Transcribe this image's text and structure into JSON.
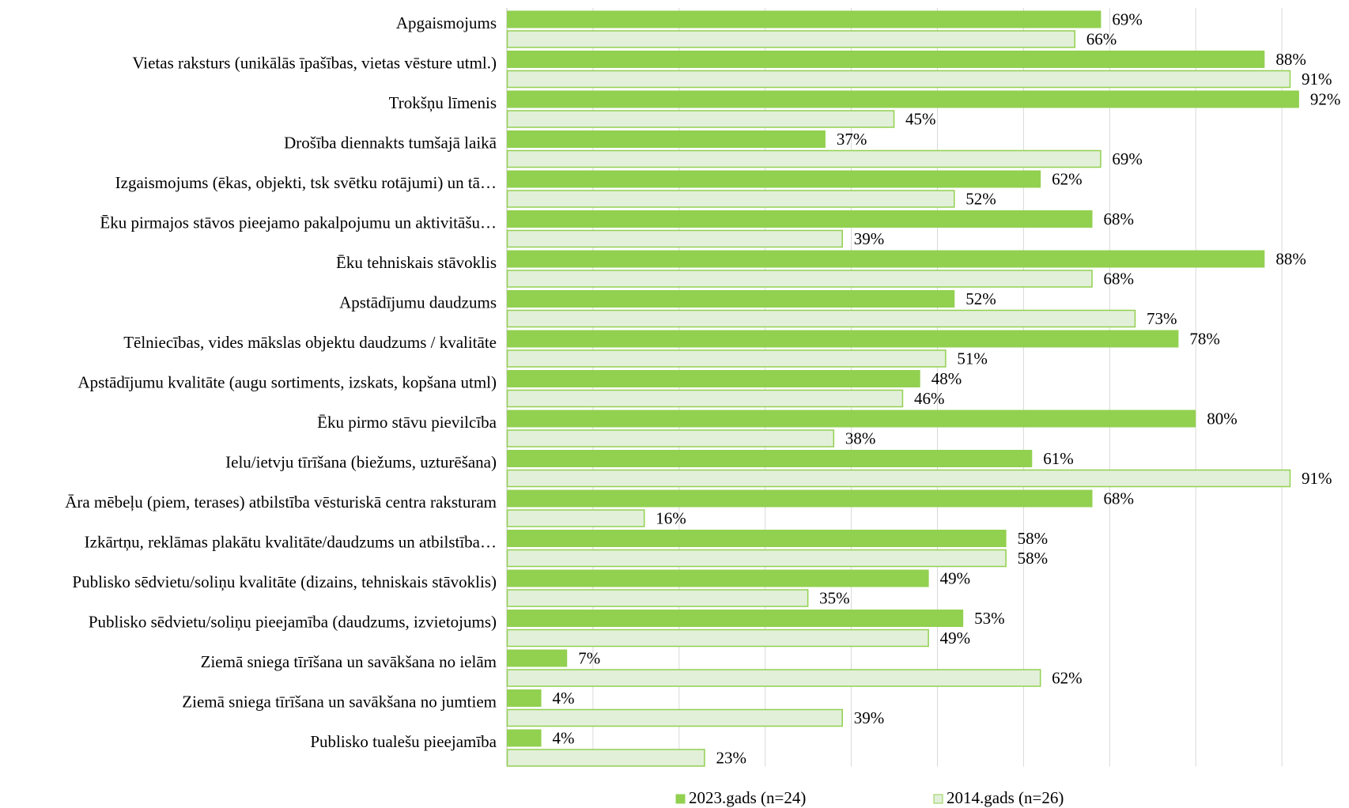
{
  "chart_data": {
    "type": "bar",
    "orientation": "horizontal",
    "categories": [
      "Apgaismojums",
      "Vietas raksturs (unikālās īpašības, vietas vēsture utml.)",
      "Trokšņu līmenis",
      "Drošība diennakts tumšajā laikā",
      "Izgaismojums (ēkas, objekti, tsk svētku rotājumi) un tā…",
      "Ēku pirmajos stāvos pieejamo pakalpojumu un aktivitāšu…",
      "Ēku tehniskais stāvoklis",
      "Apstādījumu daudzums",
      "Tēlniecības, vides mākslas objektu daudzums / kvalitāte",
      "Apstādījumu kvalitāte (augu sortiments, izskats, kopšana utml)",
      "Ēku pirmo stāvu pievilcība",
      "Ielu/ietvju tīrīšana (biežums, uzturēšana)",
      "Āra mēbeļu (piem, terases) atbilstība vēsturiskā centra raksturam",
      "Izkārtņu, reklāmas plakātu kvalitāte/daudzums un atbilstība…",
      "Publisko sēdvietu/soliņu kvalitāte (dizains, tehniskais stāvoklis)",
      "Publisko sēdvietu/soliņu pieejamība (daudzums, izvietojums)",
      "Ziemā sniega tīrīšana un savākšana no ielām",
      "Ziemā sniega tīrīšana un savākšana no jumtiem",
      "Publisko tualešu pieejamība"
    ],
    "series": [
      {
        "name": "2023.gads (n=24)",
        "values": [
          69,
          88,
          92,
          37,
          62,
          68,
          88,
          52,
          78,
          48,
          80,
          61,
          68,
          58,
          49,
          53,
          7,
          4,
          4
        ],
        "labels": [
          "69%",
          "88%",
          "92%",
          "37%",
          "62%",
          "68%",
          "88%",
          "52%",
          "78%",
          "48%",
          "80%",
          "61%",
          "68%",
          "58%",
          "49%",
          "53%",
          "7%",
          "4%",
          "4%"
        ],
        "color": "#92d050",
        "stroke": "#92d050"
      },
      {
        "name": "2014.gads (n=26)",
        "values": [
          66,
          91,
          45,
          69,
          52,
          39,
          68,
          73,
          51,
          46,
          38,
          91,
          16,
          58,
          35,
          49,
          62,
          39,
          23
        ],
        "labels": [
          "66%",
          "91%",
          "45%",
          "69%",
          "52%",
          "39%",
          "68%",
          "73%",
          "51%",
          "46%",
          "38%",
          "91%",
          "16%",
          "58%",
          "35%",
          "49%",
          "62%",
          "39%",
          "23%"
        ],
        "color": "#e2f0d9",
        "stroke": "#92d050"
      }
    ],
    "xlim": [
      0,
      100
    ],
    "grid": true,
    "legend_position": "bottom"
  }
}
